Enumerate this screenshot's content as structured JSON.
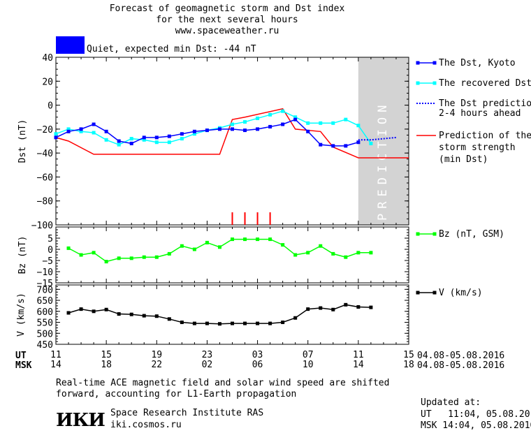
{
  "header": {
    "title_line1": "Forecast of geomagnetic storm and Dst index",
    "title_line2": "for the next several hours",
    "url": "www.spaceweather.ru",
    "status_text": "Quiet, expected min Dst: -44 nT",
    "status_color": "#0000ff"
  },
  "legend": {
    "dst_kyoto": "The Dst, Kyoto",
    "recovered": "The recovered Dst",
    "prediction_l1": "The Dst prediction",
    "prediction_l2": "2-4 hours ahead",
    "strength_l1": "Prediction of the",
    "strength_l2": "storm strength",
    "strength_l3": "(min Dst)",
    "bz": "Bz (nT, GSM)",
    "v": "V (km/s)"
  },
  "prediction_label": "PREDICTION",
  "time_axis": {
    "ut_label": "UT",
    "msk_label": "MSK",
    "ut_ticks": [
      "11",
      "15",
      "19",
      "23",
      "03",
      "07",
      "11",
      "15"
    ],
    "msk_ticks": [
      "14",
      "18",
      "22",
      "02",
      "06",
      "10",
      "14",
      "18"
    ],
    "date_range_ut": "04.08-05.08.2016",
    "date_range_msk": "04.08-05.08.2016"
  },
  "footer": {
    "note_line1": "Real-time ACE magnetic field and solar wind speed are shifted",
    "note_line2": "forward, accounting for L1-Earth propagation",
    "logo": "ИКИ",
    "institute": "Space Research Institute RAS",
    "website": "iki.cosmos.ru",
    "updated_label": "Updated at:",
    "updated_ut": "UT   11:04, 05.08.2016",
    "updated_msk": "MSK 14:04, 05.08.2016"
  },
  "colors": {
    "dst": "#0000ff",
    "recovered": "#00ffff",
    "prediction": "#0000ff",
    "strength": "#ff0000",
    "bz": "#00ff00",
    "v": "#000000",
    "prediction_band": "#d3d3d3"
  },
  "chart_data": [
    {
      "type": "line",
      "ylabel": "Dst (nT)",
      "ylim": [
        -100,
        40
      ],
      "yticks": [
        40,
        20,
        0,
        -20,
        -40,
        -60,
        -80,
        -100
      ],
      "x_unit": "hours since 04.08.2016 11:00 UT",
      "xlim": [
        0,
        28
      ],
      "prediction_start": 24,
      "series": [
        {
          "name": "The Dst, Kyoto",
          "x": [
            0,
            1,
            2,
            3,
            4,
            5,
            6,
            7,
            8,
            9,
            10,
            11,
            12,
            13,
            14,
            15,
            16,
            17,
            18,
            19,
            20,
            21,
            22,
            23,
            24
          ],
          "y": [
            -27,
            -22,
            -20,
            -16,
            -22,
            -30,
            -32,
            -27,
            -27,
            -26,
            -24,
            -22,
            -21,
            -20,
            -20,
            -21,
            -20,
            -18,
            -16,
            -12,
            -22,
            -33,
            -34,
            -34,
            -31
          ]
        },
        {
          "name": "The recovered Dst",
          "x": [
            0,
            1,
            2,
            3,
            4,
            5,
            6,
            7,
            8,
            9,
            10,
            11,
            12,
            13,
            14,
            15,
            16,
            17,
            18,
            19,
            20,
            21,
            22,
            23,
            24,
            25
          ],
          "y": [
            -24,
            -20,
            -22,
            -23,
            -29,
            -33,
            -28,
            -29,
            -31,
            -31,
            -28,
            -24,
            -21,
            -19,
            -16,
            -14,
            -11,
            -8,
            -5,
            -10,
            -15,
            -15,
            -15,
            -12,
            -17,
            -32
          ]
        },
        {
          "name": "The Dst prediction 2-4 hours ahead",
          "x": [
            24,
            25,
            26,
            27
          ],
          "y": [
            -29,
            -29,
            -28,
            -27
          ]
        },
        {
          "name": "Prediction of the storm strength (min Dst)",
          "x": [
            0,
            1,
            3,
            13,
            14,
            15,
            18,
            19,
            21,
            22,
            24,
            28
          ],
          "y": [
            -27,
            -30,
            -41,
            -41,
            -12,
            -10,
            -3,
            -20,
            -22,
            -35,
            -44,
            -44
          ]
        }
      ],
      "event_markers_x": [
        14,
        15,
        16,
        17
      ]
    },
    {
      "type": "line",
      "ylabel": "Bz (nT)",
      "ylim": [
        -15,
        10
      ],
      "yticks": [
        5,
        0,
        -5,
        -10,
        -15
      ],
      "series": [
        {
          "name": "Bz (nT, GSM)",
          "x": [
            1,
            2,
            3,
            4,
            5,
            6,
            7,
            8,
            9,
            10,
            11,
            12,
            13,
            14,
            15,
            16,
            17,
            18,
            19,
            20,
            21,
            22,
            23,
            24,
            25
          ],
          "y": [
            0.5,
            -2.5,
            -1.5,
            -5.5,
            -4,
            -4,
            -3.5,
            -3.5,
            -2,
            1.5,
            0,
            3,
            1,
            4.5,
            4.5,
            4.5,
            4.5,
            2,
            -2.5,
            -1.5,
            1.5,
            -2,
            -3.5,
            -1.5,
            -1.5
          ]
        }
      ]
    },
    {
      "type": "line",
      "ylabel": "V (km/s)",
      "ylim": [
        450,
        720
      ],
      "yticks": [
        700,
        650,
        600,
        550,
        500,
        450
      ],
      "series": [
        {
          "name": "V (km/s)",
          "x": [
            1,
            2,
            3,
            4,
            5,
            6,
            7,
            8,
            9,
            10,
            11,
            12,
            13,
            14,
            15,
            16,
            17,
            18,
            19,
            20,
            21,
            22,
            23,
            24,
            25
          ],
          "y": [
            593,
            610,
            600,
            608,
            588,
            586,
            580,
            578,
            565,
            550,
            545,
            545,
            543,
            545,
            545,
            545,
            545,
            550,
            570,
            610,
            615,
            608,
            630,
            620,
            618
          ]
        }
      ]
    }
  ]
}
